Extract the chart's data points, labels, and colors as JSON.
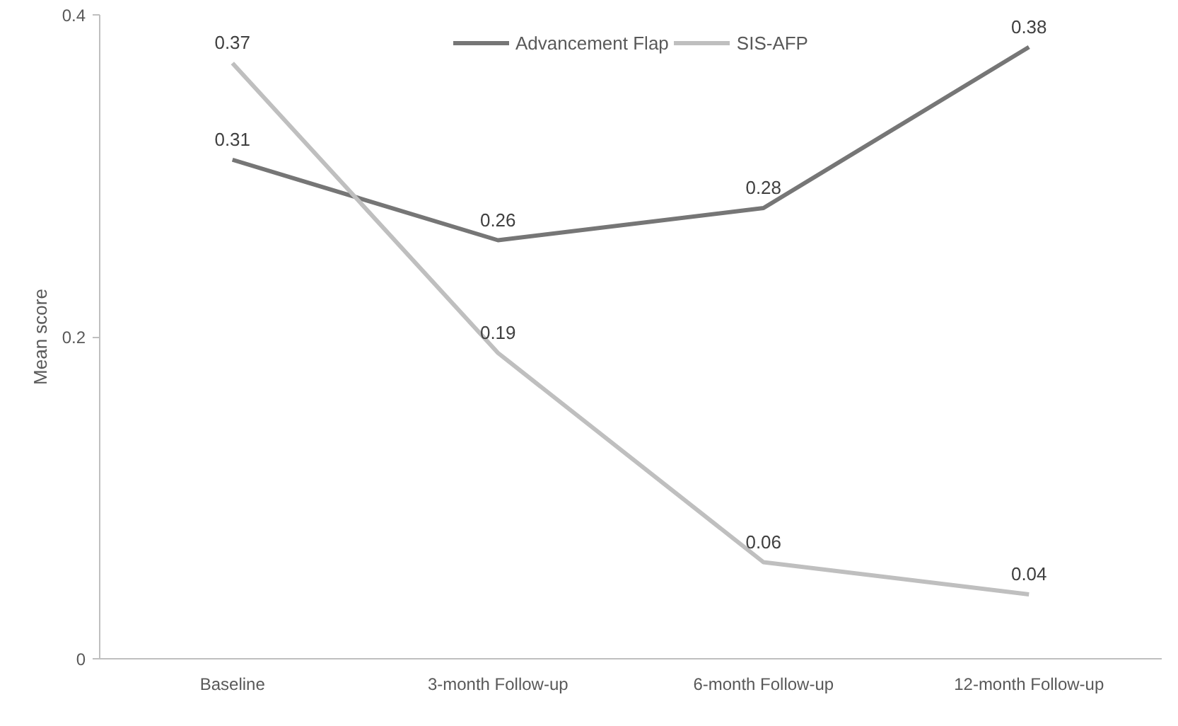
{
  "chart_data": {
    "type": "line",
    "ylabel": "Mean score",
    "categories": [
      "Baseline",
      "3-month Follow-up",
      "6-month Follow-up",
      "12-month Follow-up"
    ],
    "series": [
      {
        "name": "Advancement Flap",
        "color": "#767676",
        "values": [
          0.31,
          0.26,
          0.28,
          0.38
        ]
      },
      {
        "name": "SIS-AFP",
        "color": "#bfbfbf",
        "values": [
          0.37,
          0.19,
          0.06,
          0.04
        ]
      }
    ],
    "ylim": [
      0,
      0.4
    ],
    "yticks": [
      0,
      0.2,
      0.4
    ],
    "grid": false,
    "legend": "top",
    "marker": "none",
    "line_style": "solid",
    "data_labels": true
  }
}
